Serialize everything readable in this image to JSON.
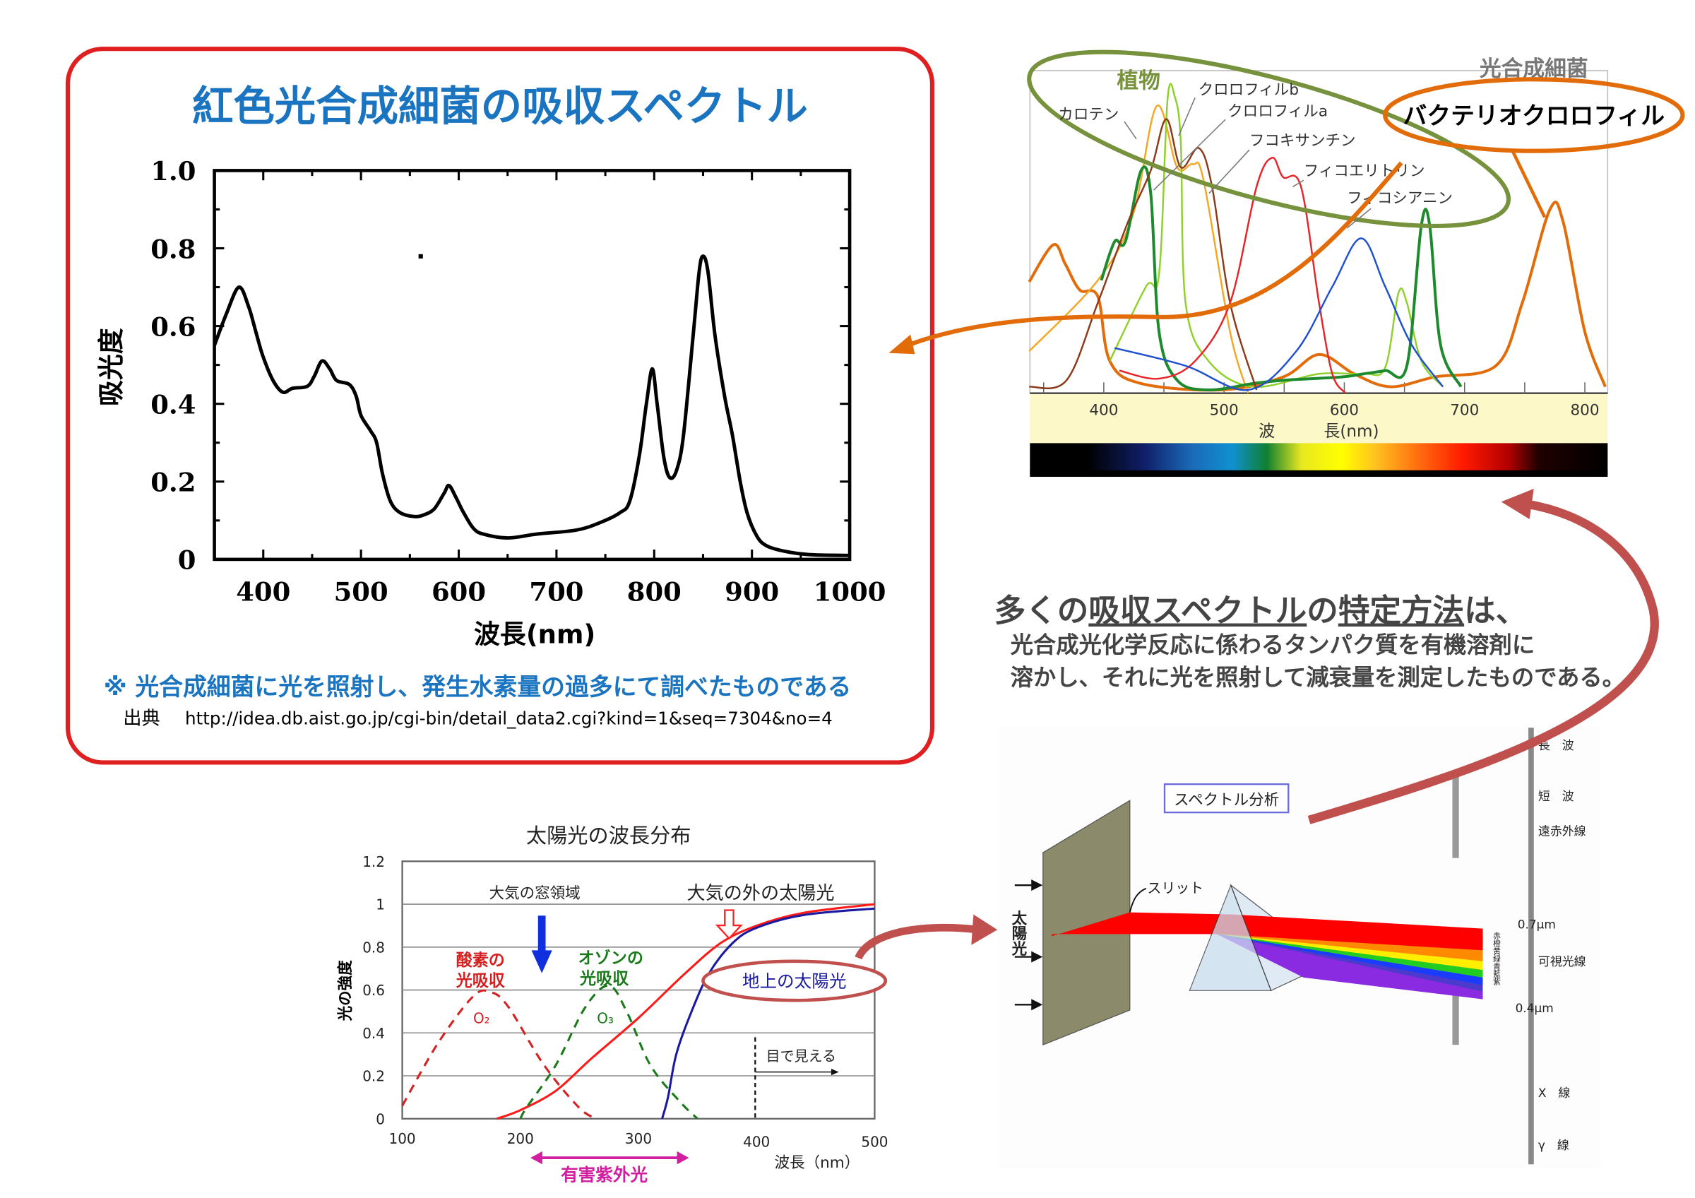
{
  "colors": {
    "frame_red": "#e02020",
    "title_blue": "#1a74c0",
    "plant_green": "#76923c",
    "bacteria_orange": "#e36c0a",
    "arrow_red": "#c0504d",
    "text_gray": "#444444"
  },
  "panel_main": {
    "title": "紅色光合成細菌の吸収スペクトル",
    "note": "※  光合成細菌に光を照射し、発生水素量の過多にて調べたものである",
    "source_label": "出典",
    "source_url": "http://idea.db.aist.go.jp/cgi-bin/detail_data2.cgi?kind=1&seq=7304&no=4"
  },
  "text_block": {
    "heading_parts": [
      "多くの",
      "吸収スペクトル",
      "の",
      "特定方法",
      "は、"
    ],
    "line1": "光合成光化学反応に係わるタンパク質を有機溶剤に",
    "line2": "溶かし、それに光を照射して減衰量を測定したものである。"
  },
  "prism": {
    "label_analysis": "スペクトル分析",
    "label_slit": "スリット",
    "label_sunlight": "太陽光",
    "colors_vertical": "赤橙黄緑青藍紫",
    "scale_labels": [
      "長　波",
      "短　波",
      "遠赤外線",
      "0.7μm",
      "可視光線",
      "0.4μm",
      "X　線",
      "γ　線"
    ]
  },
  "chart_data": [
    {
      "type": "line",
      "title": "",
      "xlabel": "波長(nm)",
      "ylabel": "吸光度",
      "xlim": [
        350,
        1000
      ],
      "ylim": [
        0,
        1.0
      ],
      "xticks": [
        "400",
        "500",
        "600",
        "700",
        "800",
        "900",
        "1000"
      ],
      "yticks": [
        "0",
        "0.2",
        "0.4",
        "0.6",
        "0.8",
        "1.0"
      ],
      "grid": false,
      "series": [
        {
          "color": "#000000",
          "points": [
            [
              350,
              0.55
            ],
            [
              362,
              0.63
            ],
            [
              375,
              0.7
            ],
            [
              385,
              0.65
            ],
            [
              393,
              0.58
            ],
            [
              400,
              0.52
            ],
            [
              410,
              0.46
            ],
            [
              420,
              0.43
            ],
            [
              430,
              0.44
            ],
            [
              445,
              0.445
            ],
            [
              452,
              0.47
            ],
            [
              460,
              0.51
            ],
            [
              468,
              0.49
            ],
            [
              475,
              0.46
            ],
            [
              488,
              0.45
            ],
            [
              495,
              0.42
            ],
            [
              500,
              0.37
            ],
            [
              510,
              0.33
            ],
            [
              516,
              0.3
            ],
            [
              522,
              0.22
            ],
            [
              530,
              0.15
            ],
            [
              540,
              0.12
            ],
            [
              555,
              0.11
            ],
            [
              565,
              0.115
            ],
            [
              575,
              0.13
            ],
            [
              585,
              0.17
            ],
            [
              590,
              0.19
            ],
            [
              597,
              0.16
            ],
            [
              605,
              0.12
            ],
            [
              615,
              0.08
            ],
            [
              625,
              0.065
            ],
            [
              650,
              0.055
            ],
            [
              680,
              0.065
            ],
            [
              720,
              0.075
            ],
            [
              745,
              0.095
            ],
            [
              765,
              0.12
            ],
            [
              775,
              0.15
            ],
            [
              785,
              0.27
            ],
            [
              792,
              0.4
            ],
            [
              798,
              0.49
            ],
            [
              803,
              0.4
            ],
            [
              810,
              0.26
            ],
            [
              816,
              0.21
            ],
            [
              823,
              0.23
            ],
            [
              830,
              0.32
            ],
            [
              840,
              0.58
            ],
            [
              846,
              0.74
            ],
            [
              850,
              0.78
            ],
            [
              855,
              0.74
            ],
            [
              862,
              0.58
            ],
            [
              872,
              0.42
            ],
            [
              880,
              0.32
            ],
            [
              888,
              0.2
            ],
            [
              895,
              0.12
            ],
            [
              905,
              0.06
            ],
            [
              915,
              0.035
            ],
            [
              935,
              0.02
            ],
            [
              960,
              0.012
            ],
            [
              1000,
              0.01
            ]
          ]
        }
      ]
    },
    {
      "type": "line",
      "title": "",
      "xlabel": "波　　　長(nm)",
      "xlim": [
        338,
        819
      ],
      "ylim": [
        0,
        1
      ],
      "xticks": [
        "400",
        "500",
        "600",
        "700",
        "800"
      ],
      "grid": false,
      "group_labels": {
        "plants": "植物",
        "bacteria": "光合成細菌"
      },
      "series": [
        {
          "name": "バクテリオクロロフィル",
          "color": "#e36c0a",
          "points": [
            [
              338,
              0.345
            ],
            [
              358,
              0.46
            ],
            [
              368,
              0.4
            ],
            [
              380,
              0.32
            ],
            [
              395,
              0.3
            ],
            [
              405,
              0.1
            ],
            [
              431,
              0.03
            ],
            [
              498,
              0.01
            ],
            [
              549,
              0.05
            ],
            [
              579,
              0.12
            ],
            [
              608,
              0.06
            ],
            [
              638,
              0.02
            ],
            [
              675,
              0.05
            ],
            [
              726,
              0.085
            ],
            [
              748,
              0.28
            ],
            [
              771,
              0.57
            ],
            [
              782,
              0.53
            ],
            [
              800,
              0.19
            ],
            [
              817,
              0.02
            ]
          ]
        },
        {
          "name": "カロテン",
          "color": "#f5a623",
          "points": [
            [
              338,
              0.13
            ],
            [
              395,
              0.35
            ],
            [
              424,
              0.55
            ],
            [
              444,
              0.89
            ],
            [
              461,
              0.7
            ],
            [
              474,
              0.71
            ],
            [
              483,
              0.66
            ],
            [
              505,
              0.19
            ],
            [
              520,
              0
            ]
          ]
        },
        {
          "name": "クロロフィルb",
          "color": "#8fd12a",
          "points": [
            [
              405,
              0.1
            ],
            [
              435,
              0.33
            ],
            [
              446,
              0.37
            ],
            [
              453,
              0.91
            ],
            [
              459,
              0.92
            ],
            [
              464,
              0.78
            ],
            [
              468,
              0.28
            ],
            [
              487,
              0.1
            ],
            [
              524,
              0.02
            ],
            [
              579,
              0.06
            ],
            [
              616,
              0.06
            ],
            [
              634,
              0.08
            ],
            [
              645,
              0.31
            ],
            [
              652,
              0.28
            ],
            [
              664,
              0.1
            ],
            [
              682,
              0.02
            ]
          ]
        },
        {
          "name": "クロロフィルa",
          "color": "#1e8a2e",
          "points": [
            [
              398,
              0.35
            ],
            [
              409,
              0.47
            ],
            [
              418,
              0.47
            ],
            [
              431,
              0.69
            ],
            [
              439,
              0.62
            ],
            [
              446,
              0.19
            ],
            [
              461,
              0.04
            ],
            [
              487,
              0.01
            ],
            [
              524,
              0.03
            ],
            [
              549,
              0.04
            ],
            [
              597,
              0.05
            ],
            [
              616,
              0.06
            ],
            [
              634,
              0.07
            ],
            [
              652,
              0.085
            ],
            [
              664,
              0.52
            ],
            [
              671,
              0.52
            ],
            [
              680,
              0.15
            ],
            [
              697,
              0.02
            ]
          ]
        },
        {
          "name": "フコキサンチン",
          "color": "#8b3a1a",
          "points": [
            [
              338,
              0.02
            ],
            [
              369,
              0.04
            ],
            [
              395,
              0.28
            ],
            [
              420,
              0.53
            ],
            [
              439,
              0.69
            ],
            [
              452,
              0.85
            ],
            [
              464,
              0.7
            ],
            [
              479,
              0.76
            ],
            [
              490,
              0.64
            ],
            [
              505,
              0.28
            ],
            [
              527,
              0.01
            ]
          ]
        },
        {
          "name": "フィコエリトリン",
          "color": "#e8242b",
          "points": [
            [
              413,
              0.07
            ],
            [
              446,
              0.045
            ],
            [
              476,
              0.1
            ],
            [
              505,
              0.28
            ],
            [
              527,
              0.64
            ],
            [
              540,
              0.73
            ],
            [
              549,
              0.67
            ],
            [
              564,
              0.64
            ],
            [
              579,
              0.28
            ],
            [
              590,
              0.06
            ],
            [
              601,
              0
            ]
          ]
        },
        {
          "name": "フィコシアニン",
          "color": "#2050d0",
          "points": [
            [
              409,
              0.14
            ],
            [
              468,
              0.085
            ],
            [
              520,
              0.01
            ],
            [
              560,
              0.13
            ],
            [
              590,
              0.33
            ],
            [
              614,
              0.48
            ],
            [
              634,
              0.33
            ],
            [
              656,
              0.15
            ],
            [
              682,
              0.02
            ]
          ]
        }
      ]
    },
    {
      "type": "line",
      "title": "太陽光の波長分布",
      "xlabel": "波長（nm）",
      "ylabel": "光の強度",
      "xlim": [
        100,
        500
      ],
      "ylim": [
        0,
        1.2
      ],
      "xticks": [
        "100",
        "200",
        "300",
        "400",
        "500"
      ],
      "yticks": [
        "0",
        "0.2",
        "0.4",
        "0.6",
        "0.8",
        "1",
        "1.2"
      ],
      "grid": true,
      "annotations": {
        "window": "大気の窓領域",
        "outside": "大気の外の太陽光",
        "oxygen": [
          "酸素の",
          "光吸収"
        ],
        "ozone": [
          "オゾンの",
          "光吸収"
        ],
        "ground": "地上の太陽光",
        "o2": "O₂",
        "o3": "O₃",
        "visible": "目で見える",
        "harmful_uv": "有害紫外光"
      },
      "series": [
        {
          "name": "大気の外の太陽光",
          "color": "#ff1a1a",
          "dash": false,
          "points": [
            [
              180,
              0
            ],
            [
              200,
              0.04
            ],
            [
              230,
              0.13
            ],
            [
              260,
              0.28
            ],
            [
              300,
              0.47
            ],
            [
              340,
              0.68
            ],
            [
              370,
              0.82
            ],
            [
              400,
              0.9
            ],
            [
              440,
              0.96
            ],
            [
              500,
              1.0
            ]
          ]
        },
        {
          "name": "地上の太陽光",
          "color": "#1a1aa0",
          "dash": false,
          "points": [
            [
              320,
              0
            ],
            [
              325,
              0.1
            ],
            [
              332,
              0.3
            ],
            [
              345,
              0.5
            ],
            [
              360,
              0.68
            ],
            [
              380,
              0.82
            ],
            [
              400,
              0.89
            ],
            [
              440,
              0.95
            ],
            [
              500,
              0.98
            ]
          ]
        },
        {
          "name": "O₂",
          "color": "#d42020",
          "dash": true,
          "points": [
            [
              100,
              0.06
            ],
            [
              130,
              0.35
            ],
            [
              160,
              0.57
            ],
            [
              175,
              0.59
            ],
            [
              190,
              0.52
            ],
            [
              220,
              0.25
            ],
            [
              250,
              0.05
            ],
            [
              265,
              0
            ]
          ]
        },
        {
          "name": "O₃",
          "color": "#1a7a1a",
          "dash": true,
          "points": [
            [
              200,
              0
            ],
            [
              205,
              0.05
            ],
            [
              230,
              0.25
            ],
            [
              255,
              0.52
            ],
            [
              275,
              0.62
            ],
            [
              290,
              0.5
            ],
            [
              310,
              0.25
            ],
            [
              335,
              0.08
            ],
            [
              350,
              0
            ]
          ]
        }
      ]
    }
  ]
}
